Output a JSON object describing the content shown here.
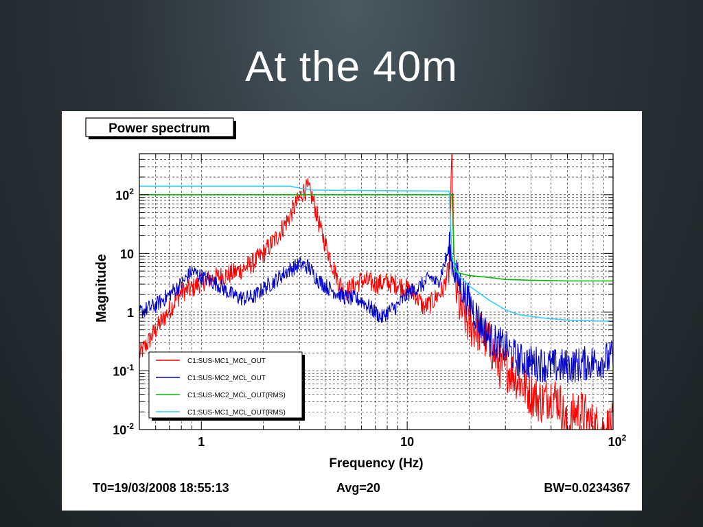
{
  "slide": {
    "title": "At the 40m"
  },
  "chart_data": {
    "type": "line",
    "title": "Power spectrum",
    "xlabel": "Frequency (Hz)",
    "ylabel": "Magnitude",
    "xscale": "log",
    "yscale": "log",
    "xlim": [
      0.5,
      100
    ],
    "ylim": [
      0.01,
      500
    ],
    "grid": true,
    "legend_position": "bottom-left",
    "x_ticks": [
      {
        "value": 1,
        "base": "1",
        "exp": ""
      },
      {
        "value": 10,
        "base": "10",
        "exp": ""
      },
      {
        "value": 100,
        "base": "10",
        "exp": "2"
      }
    ],
    "y_ticks": [
      {
        "value": 0.01,
        "base": "10",
        "exp": "-2"
      },
      {
        "value": 0.1,
        "base": "10",
        "exp": "-1"
      },
      {
        "value": 1,
        "base": "1",
        "exp": ""
      },
      {
        "value": 10,
        "base": "10",
        "exp": ""
      },
      {
        "value": 100,
        "base": "10",
        "exp": "2"
      }
    ],
    "series": [
      {
        "name": "C1:SUS-MC1_MCL_OUT",
        "color": "#ff0000",
        "noise": 0.18,
        "points": [
          [
            0.5,
            0.19
          ],
          [
            0.55,
            0.3
          ],
          [
            0.6,
            0.5
          ],
          [
            0.7,
            1.1
          ],
          [
            0.8,
            2.2
          ],
          [
            0.9,
            2.5
          ],
          [
            1.0,
            3.3
          ],
          [
            1.2,
            4.0
          ],
          [
            1.4,
            4.5
          ],
          [
            1.6,
            5.5
          ],
          [
            1.8,
            7
          ],
          [
            2.0,
            10
          ],
          [
            2.3,
            18
          ],
          [
            2.6,
            35
          ],
          [
            2.9,
            70
          ],
          [
            3.1,
            110
          ],
          [
            3.3,
            130
          ],
          [
            3.5,
            80
          ],
          [
            3.8,
            25
          ],
          [
            4.2,
            9
          ],
          [
            4.6,
            3.5
          ],
          [
            5.0,
            2.2
          ],
          [
            5.5,
            2.8
          ],
          [
            6.0,
            3.5
          ],
          [
            7.0,
            3.0
          ],
          [
            8.0,
            3.2
          ],
          [
            9.0,
            3.0
          ],
          [
            10.0,
            2.5
          ],
          [
            11.0,
            2.0
          ],
          [
            12.0,
            1.2
          ],
          [
            13.0,
            1.4
          ],
          [
            15.0,
            2.5
          ],
          [
            16.0,
            6
          ],
          [
            16.5,
            300
          ],
          [
            17.0,
            3.0
          ],
          [
            18.0,
            1.2
          ],
          [
            20.0,
            0.6
          ],
          [
            22.0,
            0.5
          ],
          [
            25.0,
            0.3
          ],
          [
            28.0,
            0.12
          ],
          [
            32.0,
            0.1
          ],
          [
            36.0,
            0.06
          ],
          [
            40.0,
            0.04
          ],
          [
            45.0,
            0.03
          ],
          [
            50.0,
            0.04
          ],
          [
            55.0,
            0.03
          ],
          [
            60.0,
            0.01
          ],
          [
            65.0,
            0.02
          ],
          [
            70.0,
            0.02
          ],
          [
            80.0,
            0.012
          ],
          [
            90.0,
            0.01
          ],
          [
            100,
            0.012
          ]
        ]
      },
      {
        "name": "C1:SUS-MC2_MCL_OUT",
        "color": "#0000cc",
        "noise": 0.14,
        "points": [
          [
            0.5,
            1.0
          ],
          [
            0.6,
            1.3
          ],
          [
            0.7,
            2.0
          ],
          [
            0.8,
            3.0
          ],
          [
            0.9,
            5.0
          ],
          [
            1.0,
            4.0
          ],
          [
            1.2,
            3.0
          ],
          [
            1.4,
            2.0
          ],
          [
            1.6,
            1.7
          ],
          [
            1.8,
            1.8
          ],
          [
            2.0,
            2.5
          ],
          [
            2.3,
            3.5
          ],
          [
            2.6,
            5.0
          ],
          [
            3.0,
            6.5
          ],
          [
            3.3,
            6.0
          ],
          [
            3.7,
            3.5
          ],
          [
            4.2,
            2.5
          ],
          [
            5.0,
            1.8
          ],
          [
            6.0,
            1.6
          ],
          [
            7.0,
            1.0
          ],
          [
            7.5,
            0.8
          ],
          [
            8.0,
            1.0
          ],
          [
            9.0,
            1.3
          ],
          [
            10.0,
            2.0
          ],
          [
            11.0,
            2.5
          ],
          [
            12.0,
            3.0
          ],
          [
            13.0,
            4.0
          ],
          [
            14.0,
            3.0
          ],
          [
            15.0,
            6.0
          ],
          [
            16.0,
            12
          ],
          [
            17.0,
            5.0
          ],
          [
            18.0,
            3.0
          ],
          [
            20.0,
            1.5
          ],
          [
            22.0,
            0.8
          ],
          [
            25.0,
            0.35
          ],
          [
            30.0,
            0.25
          ],
          [
            35.0,
            0.15
          ],
          [
            40.0,
            0.14
          ],
          [
            50.0,
            0.12
          ],
          [
            60.0,
            0.12
          ],
          [
            70.0,
            0.13
          ],
          [
            80.0,
            0.14
          ],
          [
            90.0,
            0.15
          ],
          [
            100,
            0.17
          ]
        ]
      },
      {
        "name": "C1:SUS-MC2_MCL_OUT(RMS)",
        "color": "#00bb00",
        "noise": 0,
        "points": [
          [
            0.5,
            100
          ],
          [
            3.0,
            100
          ],
          [
            16.0,
            100
          ],
          [
            16.5,
            100
          ],
          [
            17.0,
            5.0
          ],
          [
            18.0,
            4.6
          ],
          [
            20.0,
            4.2
          ],
          [
            25.0,
            3.9
          ],
          [
            30.0,
            3.6
          ],
          [
            40.0,
            3.5
          ],
          [
            60.0,
            3.4
          ],
          [
            100,
            3.4
          ]
        ]
      },
      {
        "name": "C1:SUS-MC1_MCL_OUT(RMS)",
        "color": "#33ccff",
        "noise": 0,
        "points": [
          [
            0.5,
            140
          ],
          [
            2.7,
            140
          ],
          [
            3.0,
            130
          ],
          [
            3.5,
            120
          ],
          [
            16.0,
            115
          ],
          [
            16.5,
            8.0
          ],
          [
            18.0,
            4.0
          ],
          [
            20.0,
            2.8
          ],
          [
            25.0,
            1.6
          ],
          [
            30.0,
            1.1
          ],
          [
            35.0,
            0.9
          ],
          [
            45.0,
            0.8
          ],
          [
            60.0,
            0.73
          ],
          [
            100,
            0.7
          ]
        ]
      }
    ],
    "footer": {
      "t0": "T0=19/03/2008 18:55:13",
      "avg": "Avg=20",
      "bw": "BW=0.0234367"
    }
  }
}
